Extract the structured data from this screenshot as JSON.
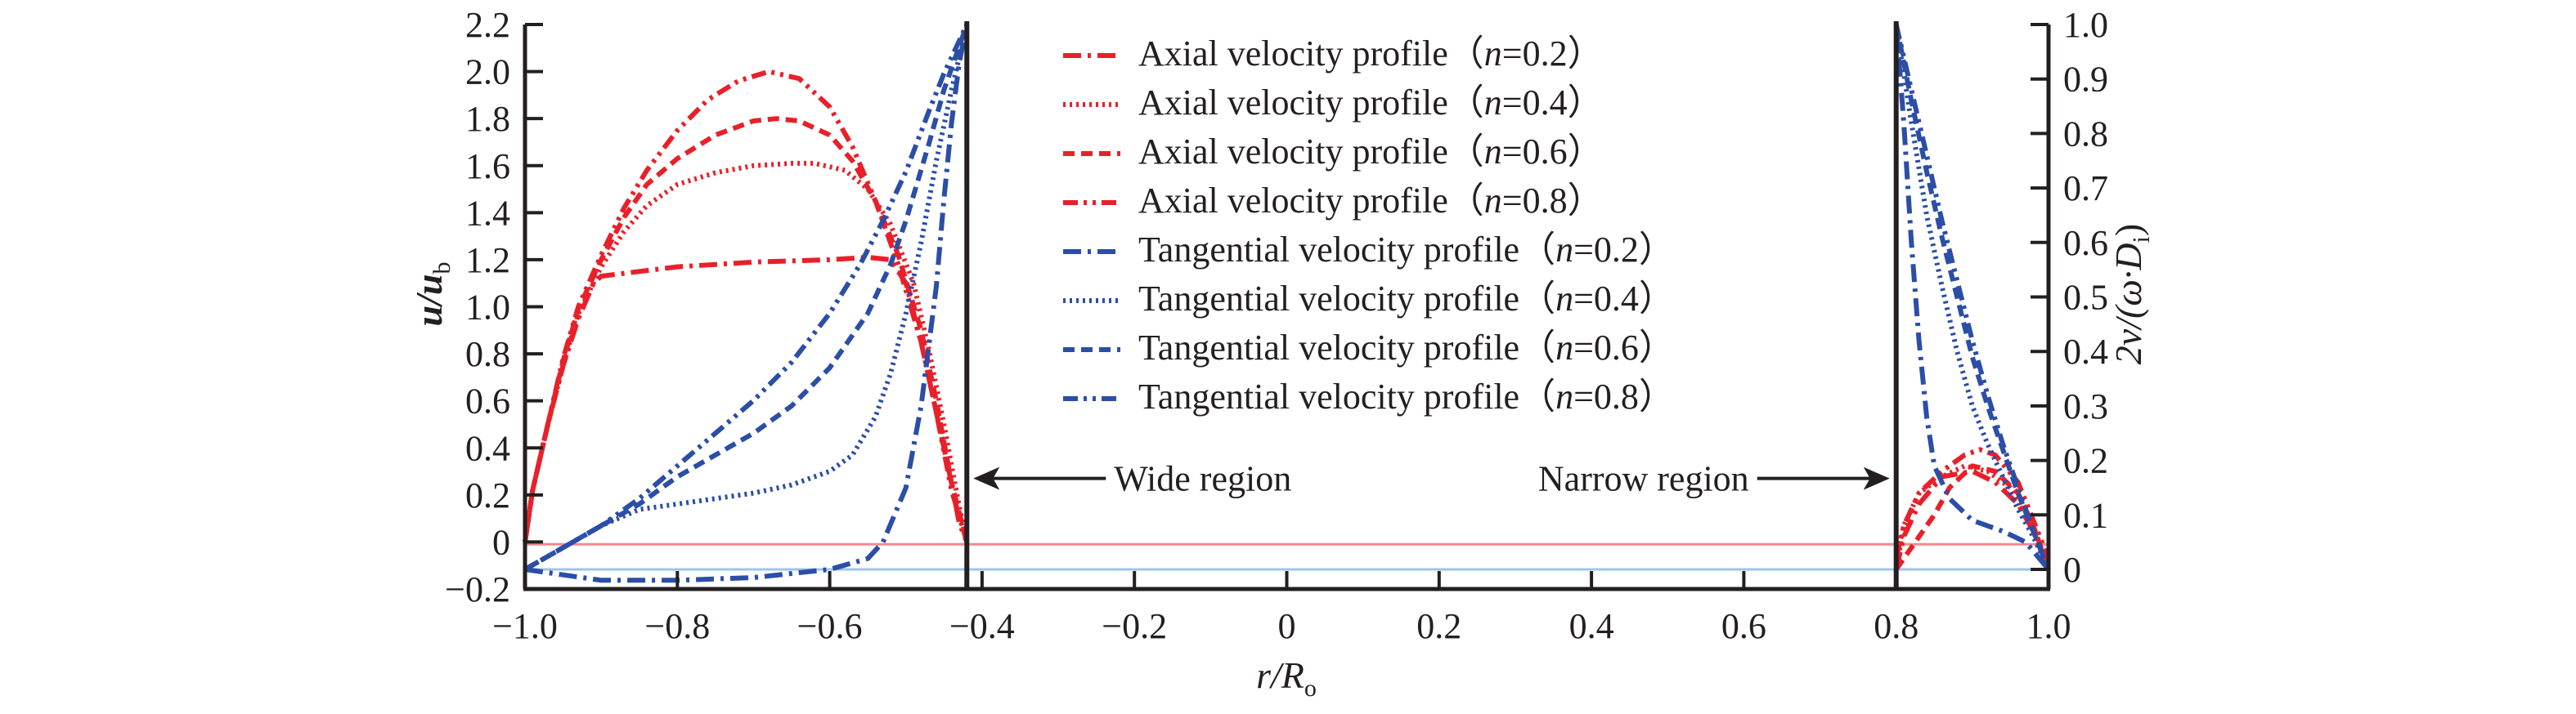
{
  "chart_data": {
    "type": "line",
    "title": "",
    "xlabel": "r/R_o",
    "xlabel_parts": {
      "main": "r/R",
      "sub": "o"
    },
    "ylabel_left": "u/u_b",
    "ylabel_left_parts": {
      "main": "u/u",
      "sub": "b"
    },
    "ylabel_right": "2v/(ω·D_i)",
    "ylabel_right_parts": {
      "main": "2v/(ω·D",
      "sub": "i",
      "close": ")"
    },
    "xlim": [
      -1.0,
      1.0
    ],
    "ylim_left": [
      -0.2,
      2.2
    ],
    "ylim_right": [
      0.0,
      1.0
    ],
    "grid": false,
    "legend_placement": "top-center",
    "x_ticks": [
      "−1.0",
      "−0.8",
      "−0.6",
      "−0.4",
      "−0.2",
      "0",
      "0.2",
      "0.4",
      "0.6",
      "0.8",
      "1.0"
    ],
    "x_tick_values": [
      -1.0,
      -0.8,
      -0.6,
      -0.4,
      -0.2,
      0,
      0.2,
      0.4,
      0.6,
      0.8,
      1.0
    ],
    "y_left_ticks": [
      "−0.2",
      "0",
      "0.2",
      "0.4",
      "0.6",
      "0.8",
      "1.0",
      "1.2",
      "1.4",
      "1.6",
      "1.8",
      "2.0",
      "2.2"
    ],
    "y_left_tick_values": [
      -0.2,
      0,
      0.2,
      0.4,
      0.6,
      0.8,
      1.0,
      1.2,
      1.4,
      1.6,
      1.8,
      2.0,
      2.2
    ],
    "y_right_ticks": [
      "0",
      "0.1",
      "0.2",
      "0.3",
      "0.4",
      "0.5",
      "0.6",
      "0.7",
      "0.8",
      "0.9",
      "1.0"
    ],
    "y_right_tick_values": [
      0,
      0.1,
      0.2,
      0.3,
      0.4,
      0.5,
      0.6,
      0.7,
      0.8,
      0.9,
      1.0
    ],
    "colors": {
      "axial": "#e8202a",
      "tangential": "#2b4ea6",
      "axis": "#231f20",
      "axial_ref": "#f08a90",
      "tangential_ref": "#9fc4e6"
    },
    "reference_lines": {
      "axial_zero_left": -0.01,
      "tangential_zero_right": 0.0,
      "wide_region_boundary_x": -0.42,
      "narrow_region_boundary_x": 0.8
    },
    "annotations": [
      {
        "text": "Wide region",
        "arrow": "left",
        "target_x": -0.42,
        "y_left": 0.27
      },
      {
        "text": "Narrow region",
        "arrow": "right",
        "target_x": 0.8,
        "y_left": 0.27
      }
    ],
    "legend": [
      {
        "label": "Axial velocity profile",
        "n": "0.2",
        "group": "axial",
        "style": "dash-dot"
      },
      {
        "label": "Axial velocity profile",
        "n": "0.4",
        "group": "axial",
        "style": "dotted"
      },
      {
        "label": "Axial velocity profile",
        "n": "0.6",
        "group": "axial",
        "style": "dashed"
      },
      {
        "label": "Axial velocity profile",
        "n": "0.8",
        "group": "axial",
        "style": "dash-dot-dot"
      },
      {
        "label": "Tangential velocity profile",
        "n": "0.2",
        "group": "tangential",
        "style": "dash-dot"
      },
      {
        "label": "Tangential velocity profile",
        "n": "0.4",
        "group": "tangential",
        "style": "dotted"
      },
      {
        "label": "Tangential velocity profile",
        "n": "0.6",
        "group": "tangential",
        "style": "dashed"
      },
      {
        "label": "Tangential velocity profile",
        "n": "0.8",
        "group": "tangential",
        "style": "dash-dot-dot"
      }
    ],
    "series": [
      {
        "name": "Axial velocity profile (n=0.2)",
        "axis": "left",
        "group": "axial",
        "style": "dash-dot",
        "wide": {
          "x": [
            -1.0,
            -0.99,
            -0.97,
            -0.95,
            -0.93,
            -0.91,
            -0.9,
            -0.85,
            -0.8,
            -0.7,
            -0.6,
            -0.55,
            -0.52,
            -0.5,
            -0.48,
            -0.46,
            -0.44,
            -0.43,
            -0.42
          ],
          "y": [
            0.0,
            0.22,
            0.5,
            0.75,
            0.95,
            1.1,
            1.13,
            1.15,
            1.17,
            1.19,
            1.2,
            1.21,
            1.2,
            1.1,
            0.85,
            0.55,
            0.25,
            0.08,
            0.0
          ]
        },
        "narrow": {
          "x": [
            0.8,
            0.81,
            0.83,
            0.86,
            0.9,
            0.93,
            0.96,
            0.98,
            1.0
          ],
          "y_right": [
            0.0,
            0.06,
            0.12,
            0.17,
            0.18,
            0.16,
            0.12,
            0.07,
            0.0
          ]
        }
      },
      {
        "name": "Axial velocity profile (n=0.4)",
        "axis": "left",
        "group": "axial",
        "style": "dotted",
        "wide": {
          "x": [
            -1.0,
            -0.99,
            -0.97,
            -0.95,
            -0.93,
            -0.9,
            -0.87,
            -0.84,
            -0.8,
            -0.75,
            -0.7,
            -0.65,
            -0.62,
            -0.58,
            -0.55,
            -0.52,
            -0.49,
            -0.47,
            -0.45,
            -0.43,
            -0.42
          ],
          "y": [
            0.0,
            0.22,
            0.5,
            0.75,
            0.97,
            1.17,
            1.32,
            1.43,
            1.52,
            1.57,
            1.6,
            1.61,
            1.61,
            1.58,
            1.5,
            1.35,
            1.1,
            0.82,
            0.5,
            0.15,
            0.0
          ]
        },
        "narrow": {
          "x": [
            0.8,
            0.81,
            0.83,
            0.86,
            0.89,
            0.92,
            0.95,
            0.98,
            1.0
          ],
          "y_right": [
            0.0,
            0.08,
            0.14,
            0.17,
            0.19,
            0.18,
            0.15,
            0.08,
            0.0
          ]
        }
      },
      {
        "name": "Axial velocity profile (n=0.6)",
        "axis": "left",
        "group": "axial",
        "style": "dashed",
        "wide": {
          "x": [
            -1.0,
            -0.99,
            -0.97,
            -0.95,
            -0.93,
            -0.9,
            -0.87,
            -0.84,
            -0.8,
            -0.75,
            -0.7,
            -0.67,
            -0.64,
            -0.6,
            -0.57,
            -0.54,
            -0.51,
            -0.48,
            -0.46,
            -0.44,
            -0.42
          ],
          "y": [
            0.0,
            0.22,
            0.5,
            0.77,
            0.99,
            1.2,
            1.38,
            1.52,
            1.63,
            1.73,
            1.79,
            1.8,
            1.79,
            1.73,
            1.62,
            1.45,
            1.22,
            0.9,
            0.6,
            0.25,
            0.0
          ]
        },
        "narrow": {
          "x": [
            0.8,
            0.81,
            0.83,
            0.85,
            0.87,
            0.9,
            0.93,
            0.96,
            0.98,
            1.0
          ],
          "y_right": [
            0.0,
            0.02,
            0.06,
            0.1,
            0.15,
            0.19,
            0.18,
            0.14,
            0.08,
            0.0
          ]
        }
      },
      {
        "name": "Axial velocity profile (n=0.8)",
        "axis": "left",
        "group": "axial",
        "style": "dash-dot-dot",
        "wide": {
          "x": [
            -1.0,
            -0.99,
            -0.97,
            -0.95,
            -0.93,
            -0.9,
            -0.87,
            -0.84,
            -0.8,
            -0.76,
            -0.72,
            -0.68,
            -0.64,
            -0.6,
            -0.57,
            -0.54,
            -0.51,
            -0.48,
            -0.46,
            -0.44,
            -0.42
          ],
          "y": [
            0.0,
            0.22,
            0.5,
            0.78,
            1.0,
            1.22,
            1.42,
            1.58,
            1.75,
            1.88,
            1.96,
            2.0,
            1.97,
            1.85,
            1.68,
            1.45,
            1.18,
            0.85,
            0.55,
            0.22,
            0.0
          ]
        },
        "narrow": {
          "x": [
            0.8,
            0.81,
            0.83,
            0.86,
            0.89,
            0.91,
            0.93,
            0.96,
            0.98,
            1.0
          ],
          "y_right": [
            0.02,
            0.08,
            0.14,
            0.18,
            0.21,
            0.22,
            0.21,
            0.16,
            0.09,
            0.02
          ]
        }
      },
      {
        "name": "Tangential velocity profile (n=0.2)",
        "axis": "right",
        "group": "tangential",
        "style": "dash-dot",
        "wide": {
          "x": [
            -1.0,
            -0.95,
            -0.9,
            -0.85,
            -0.8,
            -0.7,
            -0.6,
            -0.55,
            -0.53,
            -0.5,
            -0.48,
            -0.46,
            -0.45,
            -0.44,
            -0.43,
            -0.42
          ],
          "y_right": [
            0.0,
            -0.01,
            -0.02,
            -0.02,
            -0.02,
            -0.015,
            0.0,
            0.02,
            0.05,
            0.15,
            0.3,
            0.52,
            0.68,
            0.82,
            0.93,
            1.0
          ]
        },
        "narrow": {
          "x": [
            0.8,
            0.81,
            0.82,
            0.83,
            0.84,
            0.85,
            0.87,
            0.9,
            0.94,
            0.97,
            1.0
          ],
          "y_right": [
            1.0,
            0.82,
            0.6,
            0.42,
            0.28,
            0.19,
            0.13,
            0.09,
            0.07,
            0.05,
            0.0
          ]
        }
      },
      {
        "name": "Tangential velocity profile (n=0.4)",
        "axis": "right",
        "group": "tangential",
        "style": "dotted",
        "wide": {
          "x": [
            -1.0,
            -0.95,
            -0.9,
            -0.85,
            -0.8,
            -0.7,
            -0.65,
            -0.6,
            -0.57,
            -0.54,
            -0.52,
            -0.5,
            -0.48,
            -0.46,
            -0.44,
            -0.42
          ],
          "y_right": [
            0.0,
            0.04,
            0.08,
            0.11,
            0.12,
            0.14,
            0.155,
            0.18,
            0.21,
            0.28,
            0.36,
            0.47,
            0.6,
            0.75,
            0.88,
            1.0
          ]
        },
        "narrow": {
          "x": [
            0.8,
            0.82,
            0.84,
            0.86,
            0.88,
            0.9,
            0.92,
            0.94,
            0.96,
            0.98,
            1.0
          ],
          "y_right": [
            1.0,
            0.82,
            0.65,
            0.52,
            0.4,
            0.3,
            0.23,
            0.17,
            0.11,
            0.06,
            0.0
          ]
        }
      },
      {
        "name": "Tangential velocity profile (n=0.6)",
        "axis": "right",
        "group": "tangential",
        "style": "dashed",
        "wide": {
          "x": [
            -1.0,
            -0.95,
            -0.9,
            -0.85,
            -0.8,
            -0.75,
            -0.7,
            -0.65,
            -0.6,
            -0.55,
            -0.52,
            -0.5,
            -0.47,
            -0.45,
            -0.43,
            -0.42
          ],
          "y_right": [
            0.0,
            0.04,
            0.08,
            0.12,
            0.17,
            0.21,
            0.25,
            0.3,
            0.37,
            0.47,
            0.56,
            0.64,
            0.78,
            0.88,
            0.96,
            1.0
          ]
        },
        "narrow": {
          "x": [
            0.8,
            0.82,
            0.84,
            0.86,
            0.88,
            0.9,
            0.92,
            0.94,
            0.96,
            0.98,
            1.0
          ],
          "y_right": [
            1.0,
            0.86,
            0.73,
            0.61,
            0.5,
            0.39,
            0.3,
            0.22,
            0.14,
            0.07,
            0.0
          ]
        }
      },
      {
        "name": "Tangential velocity profile (n=0.8)",
        "axis": "right",
        "group": "tangential",
        "style": "dash-dot-dot",
        "wide": {
          "x": [
            -1.0,
            -0.95,
            -0.9,
            -0.85,
            -0.8,
            -0.75,
            -0.7,
            -0.65,
            -0.6,
            -0.56,
            -0.53,
            -0.5,
            -0.47,
            -0.45,
            -0.43,
            -0.42
          ],
          "y_right": [
            0.0,
            0.04,
            0.08,
            0.13,
            0.19,
            0.25,
            0.31,
            0.38,
            0.47,
            0.56,
            0.64,
            0.73,
            0.84,
            0.91,
            0.97,
            1.0
          ]
        },
        "narrow": {
          "x": [
            0.8,
            0.82,
            0.84,
            0.86,
            0.88,
            0.9,
            0.92,
            0.94,
            0.96,
            0.98,
            1.0
          ],
          "y_right": [
            1.0,
            0.88,
            0.76,
            0.64,
            0.53,
            0.42,
            0.32,
            0.23,
            0.15,
            0.07,
            0.0
          ]
        }
      }
    ]
  }
}
